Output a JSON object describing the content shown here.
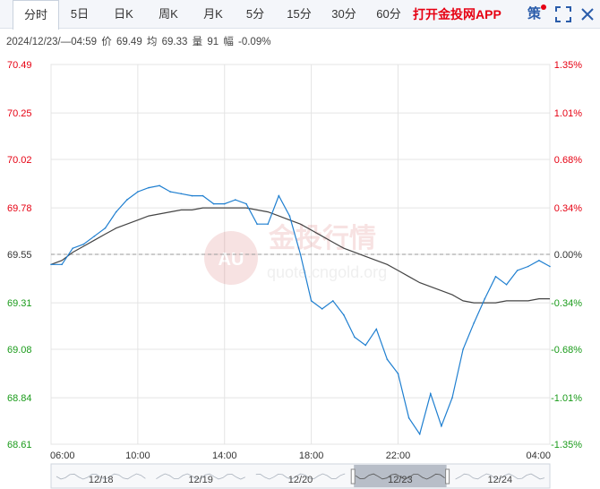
{
  "toolbar": {
    "tabs": [
      {
        "label": "分时",
        "active": true
      },
      {
        "label": "5日"
      },
      {
        "label": "日K"
      },
      {
        "label": "周K"
      },
      {
        "label": "月K"
      },
      {
        "label": "5分"
      },
      {
        "label": "15分"
      },
      {
        "label": "30分"
      },
      {
        "label": "60分"
      }
    ],
    "app_link": "打开金投网APP",
    "strategy": "策",
    "icons": [
      "expand-icon",
      "close-icon"
    ]
  },
  "info_bar": {
    "datetime": "2024/12/23/—04:59",
    "price_label": "价",
    "price": "69.49",
    "avg_label": "均",
    "avg": "69.33",
    "volume_label": "量",
    "volume": "91",
    "change_label": "幅",
    "change": "-0.09%"
  },
  "watermark": {
    "text": "金投行情",
    "url": "quote.cngold.org",
    "badge": "AU"
  },
  "colors": {
    "up": "#e60012",
    "down": "#1a9b1a",
    "price_line": "#1f7fd0",
    "avg_line": "#444444",
    "grid": "#e4e4e4"
  },
  "chart_data": {
    "type": "line",
    "reference_price": 69.55,
    "ylim": [
      68.61,
      70.49
    ],
    "y_ticks_left": [
      "70.49",
      "70.25",
      "70.02",
      "69.78",
      "69.55",
      "69.31",
      "69.08",
      "68.84",
      "68.61"
    ],
    "y_ticks_right": [
      "1.35%",
      "1.01%",
      "0.68%",
      "0.34%",
      "0.00%",
      "-0.34%",
      "-0.68%",
      "-1.01%",
      "-1.35%"
    ],
    "x_ticks": [
      "06:00",
      "10:00",
      "14:00",
      "18:00",
      "22:00",
      "04:00"
    ],
    "x": [
      "06:00",
      "06:30",
      "07:00",
      "07:30",
      "08:00",
      "08:30",
      "09:00",
      "09:30",
      "10:00",
      "10:30",
      "11:00",
      "11:30",
      "12:00",
      "12:30",
      "13:00",
      "13:30",
      "14:00",
      "14:30",
      "15:00",
      "15:30",
      "16:00",
      "16:30",
      "17:00",
      "17:30",
      "18:00",
      "18:30",
      "19:00",
      "19:30",
      "20:00",
      "20:30",
      "21:00",
      "21:30",
      "22:00",
      "22:30",
      "23:00",
      "23:30",
      "00:00",
      "00:30",
      "01:00",
      "01:30",
      "02:00",
      "02:30",
      "03:00",
      "03:30",
      "04:00",
      "04:30",
      "04:59"
    ],
    "series": [
      {
        "key": "price",
        "values": [
          69.5,
          69.5,
          69.58,
          69.6,
          69.64,
          69.68,
          69.76,
          69.82,
          69.86,
          69.88,
          69.89,
          69.86,
          69.85,
          69.84,
          69.84,
          69.8,
          69.8,
          69.82,
          69.8,
          69.7,
          69.7,
          69.84,
          69.74,
          69.55,
          69.32,
          69.28,
          69.32,
          69.25,
          69.14,
          69.1,
          69.18,
          69.03,
          68.96,
          68.74,
          68.66,
          68.86,
          68.7,
          68.84,
          69.08,
          69.21,
          69.33,
          69.44,
          69.4,
          69.47,
          69.49,
          69.52,
          69.49
        ]
      },
      {
        "key": "avg",
        "values": [
          69.5,
          69.52,
          69.56,
          69.59,
          69.62,
          69.65,
          69.68,
          69.7,
          69.72,
          69.74,
          69.75,
          69.76,
          69.77,
          69.77,
          69.78,
          69.78,
          69.78,
          69.78,
          69.78,
          69.77,
          69.76,
          69.74,
          69.72,
          69.7,
          69.67,
          69.64,
          69.61,
          69.58,
          69.56,
          69.54,
          69.52,
          69.5,
          69.47,
          69.44,
          69.41,
          69.39,
          69.37,
          69.35,
          69.32,
          69.31,
          69.31,
          69.31,
          69.32,
          69.32,
          69.32,
          69.33,
          69.33
        ]
      }
    ],
    "navigator": {
      "labels": [
        "12/18",
        "12/19",
        "12/20",
        "12/23",
        "12/24"
      ],
      "selected": "12/23"
    }
  }
}
